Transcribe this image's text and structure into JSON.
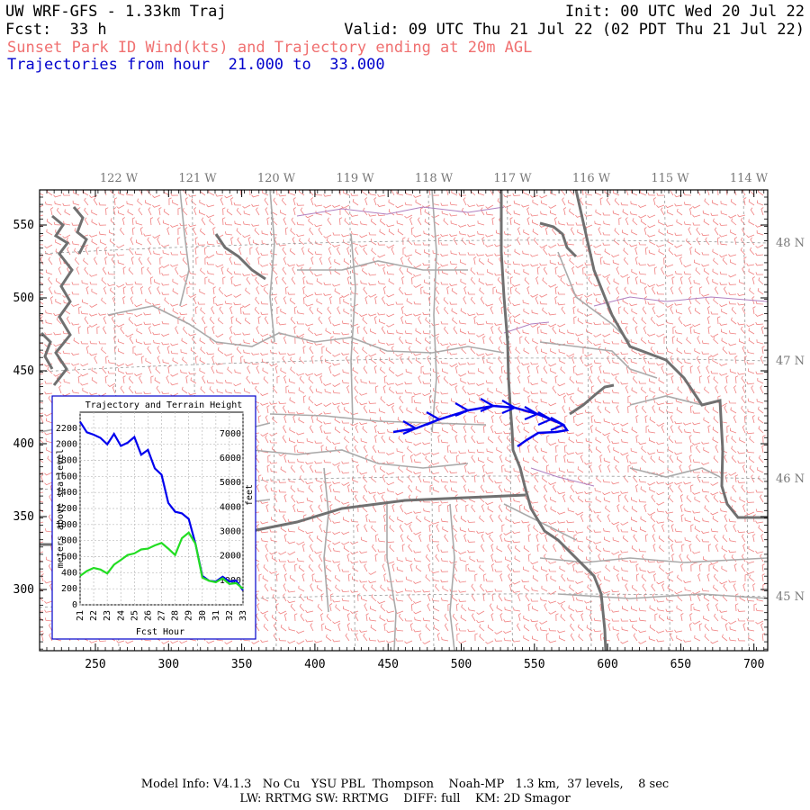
{
  "header": {
    "title_left": "UW WRF-GFS - 1.33km Traj",
    "init": "Init: 00 UTC Wed 20 Jul 22",
    "fcst": "Fcst:  33 h",
    "valid": "Valid: 09 UTC Thu 21 Jul 22 (02 PDT Thu 21 Jul 22)",
    "subtitle": "Sunset Park ID Wind(kts) and Trajectory ending at 20m AGL",
    "traj_range": "Trajectories from hour  21.000 to  33.000"
  },
  "colors": {
    "subtitle": "#f07070",
    "traj_range": "#0000cc",
    "trajectory": "#0000ee",
    "terrain": "#22dd22",
    "barbs": "#f08080",
    "borders": "#aaaaaa",
    "state_lines": "#707070"
  },
  "map": {
    "x_ticks": [
      "250",
      "300",
      "350",
      "400",
      "450",
      "500",
      "550",
      "600",
      "650",
      "700"
    ],
    "y_ticks": [
      "550",
      "500",
      "450",
      "400",
      "350",
      "300"
    ],
    "lon_labels": [
      "122 W",
      "121 W",
      "120 W",
      "119 W",
      "118 W",
      "117 W",
      "116 W",
      "115 W",
      "114 W"
    ],
    "lat_labels": [
      "48 N",
      "47 N",
      "46 N",
      "45 N"
    ]
  },
  "inset": {
    "title": "Trajectory and Terrain Height",
    "xlabel": "Fcst Hour",
    "ylabel_left": "meters above sea level",
    "ylabel_right": "feet",
    "x_ticks": [
      "21",
      "22",
      "23",
      "24",
      "25",
      "26",
      "27",
      "28",
      "29",
      "30",
      "31",
      "32",
      "33"
    ],
    "y_left_ticks": [
      "0",
      "200",
      "400",
      "600",
      "800",
      "1000",
      "1200",
      "1400",
      "1600",
      "1800",
      "2000",
      "2200"
    ],
    "y_right_ticks": [
      "1000",
      "2000",
      "3000",
      "4000",
      "5000",
      "6000",
      "7000"
    ]
  },
  "chart_data": {
    "type": "line",
    "title": "Trajectory and Terrain Height",
    "xlabel": "Fcst Hour",
    "ylabel": "meters above sea level",
    "xlim": [
      21,
      33
    ],
    "ylim": [
      0,
      2400
    ],
    "x": [
      21,
      21.5,
      22,
      22.5,
      23,
      23.5,
      24,
      24.5,
      25,
      25.5,
      26,
      26.5,
      27,
      27.5,
      28,
      28.5,
      29,
      29.5,
      30,
      30.5,
      31,
      31.5,
      32,
      32.5,
      33
    ],
    "series": [
      {
        "values": [
          2280,
          2150,
          2120,
          2080,
          2000,
          2130,
          1980,
          2020,
          2090,
          1870,
          1930,
          1700,
          1620,
          1270,
          1160,
          1140,
          1070,
          760,
          360,
          300,
          290,
          350,
          290,
          300,
          180
        ]
      },
      {
        "values": [
          360,
          420,
          460,
          440,
          390,
          500,
          560,
          620,
          640,
          690,
          700,
          740,
          770,
          700,
          620,
          830,
          900,
          760,
          340,
          300,
          280,
          330,
          260,
          270,
          200
        ]
      }
    ]
  },
  "footer": {
    "line1": "Model Info: V4.1.3   No Cu   YSU PBL  Thompson    Noah-MP   1.3 km,  37 levels,    8 sec",
    "line2": "LW: RRTMG SW: RRTMG    DIFF: full    KM: 2D Smagor"
  }
}
